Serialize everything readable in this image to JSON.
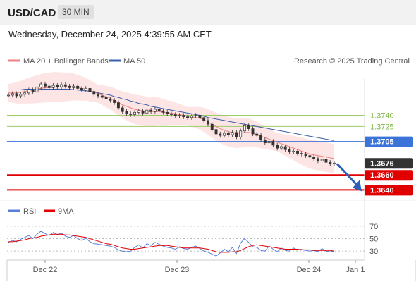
{
  "header": {
    "pair": "USD/CAD",
    "timeframe": "30 MIN",
    "datetime": "Wednesday, December 24, 2025 4:39:55 AM CET"
  },
  "legend": {
    "ma20_label": "MA 20 + Bollinger Bands",
    "ma50_label": "MA 50",
    "credit": "Research © 2025 Trading Central",
    "ma20_color": "#f08080",
    "ma50_color": "#3a5fa8"
  },
  "rsi_legend": {
    "rsi_label": "RSI",
    "ma_label": "9MA",
    "rsi_color": "#5b7fd6",
    "ma_color": "#e00000"
  },
  "chart_data": {
    "type": "candlestick",
    "ylim": [
      1.363,
      1.38
    ],
    "levels": [
      {
        "value": 1.374,
        "label": "1.3740",
        "kind": "resistance",
        "color": "#9ccc65"
      },
      {
        "value": 1.3725,
        "label": "1.3725",
        "kind": "resistance",
        "color": "#9ccc65"
      },
      {
        "value": 1.3705,
        "label": "1.3705",
        "kind": "pivot",
        "color": "#3b73d8"
      },
      {
        "value": 1.3676,
        "label": "1.3676",
        "kind": "last-price",
        "color": "#333333"
      },
      {
        "value": 1.366,
        "label": "1.3660",
        "kind": "support",
        "color": "#e00000"
      },
      {
        "value": 1.364,
        "label": "1.3640",
        "kind": "support",
        "color": "#e00000"
      }
    ],
    "x_ticks": [
      "Dec 22",
      "Dec 23",
      "Dec 24",
      "Jan 1"
    ],
    "closes": [
      1.3767,
      1.3769,
      1.3766,
      1.3768,
      1.377,
      1.3774,
      1.3771,
      1.3778,
      1.3782,
      1.3779,
      1.3777,
      1.378,
      1.3778,
      1.3781,
      1.3779,
      1.3777,
      1.3779,
      1.3776,
      1.3774,
      1.3776,
      1.3772,
      1.3768,
      1.3766,
      1.3764,
      1.3762,
      1.376,
      1.3757,
      1.375,
      1.3745,
      1.3742,
      1.3741,
      1.3744,
      1.3746,
      1.3743,
      1.3747,
      1.3745,
      1.3748,
      1.3746,
      1.3744,
      1.3742,
      1.3741,
      1.3739,
      1.374,
      1.3738,
      1.3737,
      1.3739,
      1.374,
      1.3737,
      1.3733,
      1.3728,
      1.3721,
      1.3715,
      1.3713,
      1.3716,
      1.3714,
      1.3717,
      1.3711,
      1.3719,
      1.3726,
      1.3722,
      1.3715,
      1.3713,
      1.3707,
      1.3703,
      1.3705,
      1.37,
      1.3696,
      1.3698,
      1.3694,
      1.3691,
      1.3692,
      1.3689,
      1.3688,
      1.3686,
      1.3684,
      1.3682,
      1.3679,
      1.3681,
      1.3677,
      1.3675,
      1.3676
    ],
    "ma20": [
      1.377,
      1.377,
      1.377,
      1.3771,
      1.3772,
      1.3773,
      1.3774,
      1.3775,
      1.3776,
      1.3777,
      1.3777,
      1.3778,
      1.3778,
      1.3778,
      1.3778,
      1.3778,
      1.3778,
      1.3777,
      1.3776,
      1.3775,
      1.3773,
      1.3771,
      1.3769,
      1.3767,
      1.3765,
      1.3763,
      1.376,
      1.3757,
      1.3754,
      1.3752,
      1.375,
      1.3748,
      1.3747,
      1.3746,
      1.3745,
      1.3745,
      1.3745,
      1.3745,
      1.3744,
      1.3743,
      1.3743,
      1.3742,
      1.3741,
      1.374,
      1.3739,
      1.3738,
      1.3737,
      1.3736,
      1.3734,
      1.3731,
      1.3728,
      1.3725,
      1.3722,
      1.372,
      1.3718,
      1.3717,
      1.3716,
      1.3716,
      1.3717,
      1.3717,
      1.3716,
      1.3714,
      1.3712,
      1.371,
      1.3708,
      1.3706,
      1.3704,
      1.3702,
      1.37,
      1.3698,
      1.3696,
      1.3694,
      1.3692,
      1.369,
      1.3688,
      1.3687,
      1.3686,
      1.3685,
      1.3684,
      1.3683,
      1.3682
    ],
    "ma50": [
      1.3774,
      1.3774,
      1.3774,
      1.3774,
      1.3775,
      1.3775,
      1.3775,
      1.3775,
      1.3775,
      1.3775,
      1.3775,
      1.3775,
      1.3775,
      1.3775,
      1.3775,
      1.3775,
      1.3774,
      1.3774,
      1.3773,
      1.3773,
      1.3772,
      1.3771,
      1.377,
      1.3769,
      1.3768,
      1.3767,
      1.3765,
      1.3764,
      1.3762,
      1.3761,
      1.3759,
      1.3758,
      1.3756,
      1.3755,
      1.3754,
      1.3752,
      1.3751,
      1.375,
      1.3749,
      1.3748,
      1.3747,
      1.3746,
      1.3745,
      1.3744,
      1.3743,
      1.3742,
      1.3741,
      1.374,
      1.3739,
      1.3737,
      1.3736,
      1.3735,
      1.3734,
      1.3733,
      1.3732,
      1.3731,
      1.373,
      1.3729,
      1.3728,
      1.3727,
      1.3726,
      1.3725,
      1.3724,
      1.3723,
      1.3722,
      1.3721,
      1.372,
      1.3719,
      1.3718,
      1.3717,
      1.3716,
      1.3715,
      1.3714,
      1.3713,
      1.3712,
      1.3711,
      1.371,
      1.3709,
      1.3708,
      1.3707,
      1.3706
    ],
    "rsi_levels": [
      30,
      50,
      70
    ],
    "rsi_ylim": [
      20,
      80
    ],
    "rsi": [
      44,
      47,
      45,
      49,
      52,
      55,
      50,
      57,
      62,
      58,
      55,
      60,
      56,
      59,
      54,
      52,
      55,
      50,
      47,
      51,
      45,
      42,
      41,
      40,
      39,
      38,
      36,
      32,
      30,
      29,
      30,
      36,
      40,
      35,
      42,
      39,
      44,
      41,
      38,
      36,
      35,
      33,
      37,
      34,
      33,
      36,
      38,
      34,
      30,
      28,
      25,
      22,
      27,
      33,
      29,
      36,
      26,
      43,
      50,
      44,
      37,
      36,
      31,
      30,
      38,
      33,
      29,
      35,
      31,
      30,
      35,
      32,
      33,
      31,
      30,
      31,
      29,
      34,
      30,
      29,
      30
    ],
    "rsi_ma": [
      45,
      45,
      46,
      47,
      48,
      50,
      51,
      52,
      54,
      55,
      56,
      57,
      57,
      57,
      56,
      56,
      55,
      54,
      53,
      52,
      50,
      48,
      46,
      44,
      42,
      41,
      39,
      37,
      35,
      34,
      33,
      33,
      34,
      35,
      36,
      37,
      38,
      39,
      39,
      39,
      38,
      37,
      36,
      35,
      35,
      35,
      35,
      35,
      34,
      33,
      31,
      29,
      28,
      28,
      28,
      29,
      29,
      31,
      34,
      37,
      39,
      40,
      39,
      38,
      37,
      36,
      35,
      34,
      33,
      33,
      33,
      33,
      32,
      32,
      32,
      31,
      31,
      31,
      31,
      31,
      30
    ]
  }
}
